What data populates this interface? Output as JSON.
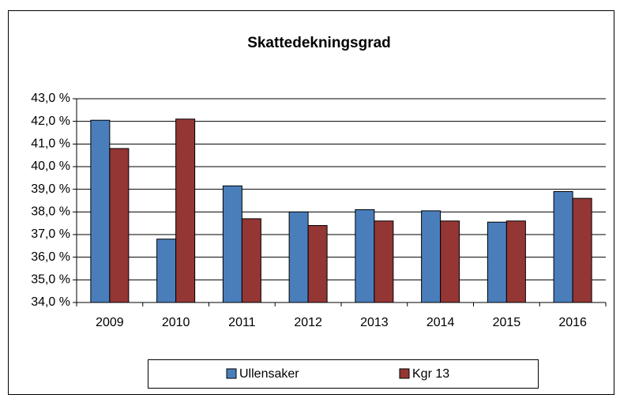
{
  "chart_data": {
    "type": "bar",
    "title": "Skattedekningsgrad",
    "categories": [
      "2009",
      "2010",
      "2011",
      "2012",
      "2013",
      "2014",
      "2015",
      "2016"
    ],
    "series": [
      {
        "name": "Ullensaker",
        "color": "#4a7ebb",
        "values": [
          42.05,
          36.8,
          39.15,
          38.0,
          38.1,
          38.05,
          37.55,
          38.9
        ]
      },
      {
        "name": "Kgr 13",
        "color": "#943634",
        "values": [
          40.8,
          42.1,
          37.7,
          37.4,
          37.6,
          37.6,
          37.6,
          38.6
        ]
      }
    ],
    "ylim": [
      34,
      43
    ],
    "yticks": [
      {
        "value": 34,
        "label": "34,0 %"
      },
      {
        "value": 35,
        "label": "35,0 %"
      },
      {
        "value": 36,
        "label": "36,0 %"
      },
      {
        "value": 37,
        "label": "37,0 %"
      },
      {
        "value": 38,
        "label": "38,0 %"
      },
      {
        "value": 39,
        "label": "39,0 %"
      },
      {
        "value": 40,
        "label": "40,0 %"
      },
      {
        "value": 41,
        "label": "41,0 %"
      },
      {
        "value": 42,
        "label": "42,0 %"
      },
      {
        "value": 43,
        "label": "43,0 %"
      }
    ],
    "grid": true,
    "legend": "bottom"
  }
}
